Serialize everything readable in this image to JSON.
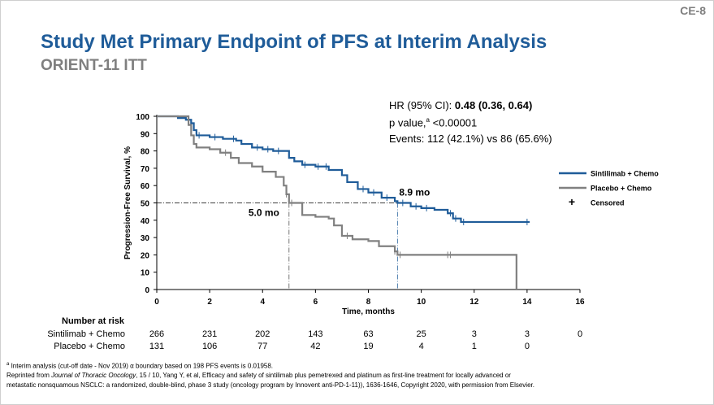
{
  "slide_id": "CE-8",
  "title": "Study Met Primary Endpoint of PFS at Interim Analysis",
  "subtitle": "ORIENT-11 ITT",
  "stats": {
    "hr_label": "HR (95% CI): ",
    "hr_value": "0.48 (0.36, 0.64)",
    "p_label": "p value,",
    "p_sup": "a",
    "p_value": " <0.00001",
    "events": "Events: 112 (42.1%) vs 86 (65.6%)"
  },
  "risk_table": {
    "title": "Number at risk",
    "rows": [
      {
        "label": "Sintilimab + Chemo",
        "values": [
          "266",
          "231",
          "202",
          "143",
          "63",
          "25",
          "3",
          "3",
          "0"
        ]
      },
      {
        "label": "Placebo + Chemo",
        "values": [
          "131",
          "106",
          "77",
          "42",
          "19",
          "4",
          "1",
          "0"
        ]
      }
    ]
  },
  "footnotes": {
    "line1": "Interim analysis (cut-off date - Nov 2019) α boundary based on 198 PFS events is 0.01958.",
    "line1_sup": "a",
    "line2": "Reprinted from ",
    "line2_journal": "Journal of Thoracic Oncology",
    "line2_rest": ", 15 / 10, Yang Y, et al, Efficacy and safety of sintilimab plus pemetrexed and platinum as first-line treatment for locally advanced or",
    "line3": "metastatic nonsquamous NSCLC: a randomized, double-blind, phase 3 study (oncology program by Innovent anti-PD-1-11)), 1636-1646, Copyright 2020, with permission from Elsevier."
  },
  "chart_data": {
    "type": "line",
    "xlabel": "Time, months",
    "ylabel": "Progression-Free Survival, %",
    "xlim": [
      0,
      16
    ],
    "ylim": [
      0,
      100
    ],
    "xticks": [
      0,
      2,
      4,
      6,
      8,
      10,
      12,
      14,
      16
    ],
    "yticks": [
      0,
      10,
      20,
      30,
      40,
      50,
      60,
      70,
      80,
      90,
      100
    ],
    "grid": false,
    "legend_position": "right",
    "legend_censored": "Censored",
    "reference_line_y": 50,
    "annotations": [
      {
        "text": "8.9 mo",
        "x": 9.1,
        "y": 50
      },
      {
        "text": "5.0 mo",
        "x": 5.0,
        "y": 50
      }
    ],
    "series": [
      {
        "name": "Sintilimab + Chemo",
        "color": "#1f5c99",
        "x": [
          0,
          0.8,
          1.1,
          1.3,
          1.4,
          1.5,
          2,
          2.5,
          3,
          3.2,
          3.6,
          4,
          4.4,
          5,
          5.2,
          5.5,
          6,
          6.5,
          7,
          7.2,
          7.6,
          8,
          8.5,
          9,
          9.1,
          9.6,
          10,
          10.5,
          11,
          11.2,
          11.5,
          13,
          14.1
        ],
        "y": [
          100,
          99,
          98,
          96,
          92,
          89,
          88,
          87,
          86,
          84,
          82,
          81,
          80,
          76,
          74,
          72,
          71,
          69,
          66,
          62,
          58,
          56,
          53,
          51,
          50,
          48,
          47,
          46,
          44,
          41,
          39,
          39,
          39
        ],
        "censored_x": [
          1.6,
          2.2,
          2.9,
          3.8,
          4.2,
          4.6,
          5.6,
          6.1,
          6.4,
          7.8,
          8.2,
          8.7,
          9.3,
          9.8,
          10.2,
          11.1,
          11.3,
          11.6,
          14.0
        ]
      },
      {
        "name": "Placebo + Chemo",
        "color": "#808080",
        "x": [
          0,
          1.2,
          1.3,
          1.4,
          1.5,
          2,
          2.4,
          2.8,
          3.1,
          3.6,
          4,
          4.5,
          4.8,
          4.9,
          5,
          5.5,
          6,
          6.5,
          6.7,
          7,
          7.4,
          8,
          8.4,
          9,
          9.1,
          13,
          13.6,
          13.6
        ],
        "y": [
          100,
          95,
          89,
          84,
          82,
          81,
          79,
          76,
          73,
          71,
          68,
          65,
          60,
          55,
          50,
          43,
          42,
          41,
          37,
          31,
          29,
          28,
          25,
          22,
          20,
          20,
          20,
          0
        ],
        "censored_x": [
          2.6,
          4.9,
          5.1,
          7.2,
          9.0,
          9.2,
          11.0,
          11.1
        ]
      }
    ]
  }
}
